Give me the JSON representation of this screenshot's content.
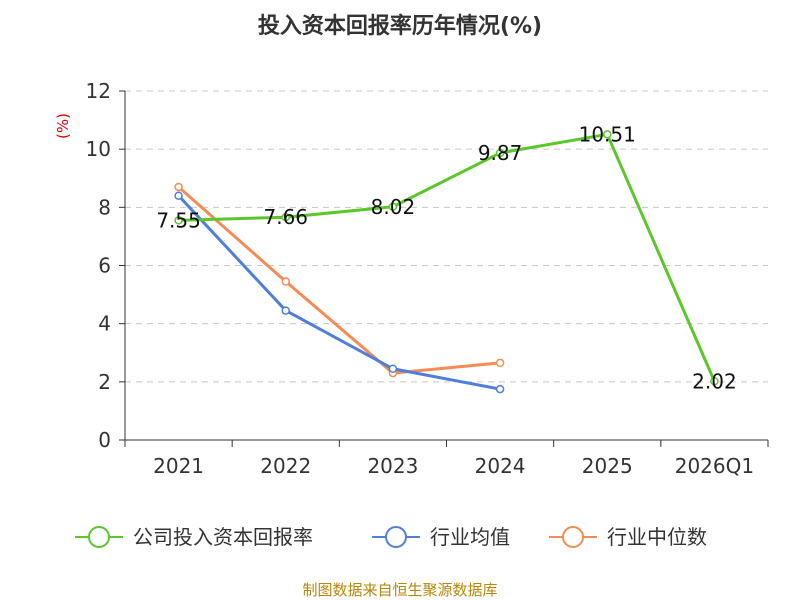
{
  "chart_data": {
    "type": "line",
    "title": "投入资本回报率历年情况(%)",
    "ylabel": "(%)",
    "xlabel": "",
    "categories": [
      "2021",
      "2022",
      "2023",
      "2024",
      "2025",
      "2026Q1"
    ],
    "ylim": [
      0,
      12
    ],
    "yticks": [
      0,
      2,
      4,
      6,
      8,
      10,
      12
    ],
    "grid": "horizontal-dashed",
    "legend_position": "bottom",
    "series": [
      {
        "name": "公司投入资本回报率",
        "color": "#5cc72a",
        "values": [
          7.55,
          7.66,
          8.02,
          9.87,
          10.51,
          2.02
        ],
        "labels": [
          "7.55",
          "7.66",
          "8.02",
          "9.87",
          "10.51",
          "2.02"
        ]
      },
      {
        "name": "行业均值",
        "color": "#4f7fdb",
        "values": [
          8.4,
          4.45,
          2.45,
          1.75,
          null,
          null
        ]
      },
      {
        "name": "行业中位数",
        "color": "#f58b55",
        "values": [
          8.7,
          5.45,
          2.3,
          2.65,
          null,
          null
        ]
      }
    ],
    "source": "制图数据来自恒生聚源数据库"
  }
}
